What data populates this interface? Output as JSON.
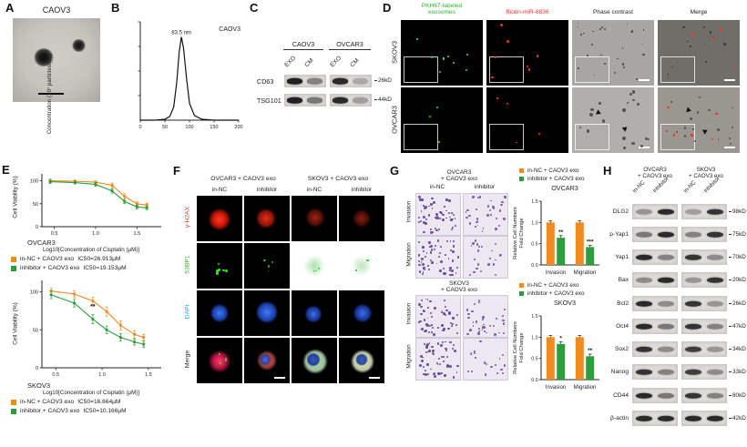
{
  "colors": {
    "orange": "#EF8B1E",
    "green": "#2E9B3F"
  },
  "panelA": {
    "label": "A",
    "title": "CAOV3"
  },
  "panelB": {
    "label": "B",
    "ylabel": "Concentration (10⁷ particles/mL)"
  },
  "panelC": {
    "label": "C",
    "groups": [
      "CAOV3",
      "OVCAR3"
    ],
    "lanes": [
      "EXO",
      "CM"
    ],
    "rows": [
      {
        "protein": "CD63",
        "size": "26kD"
      },
      {
        "protein": "TSG101",
        "size": "44kD"
      }
    ]
  },
  "panelD": {
    "label": "D",
    "col1_line1": "PKH67-labeled",
    "col1_line2": "exosomes",
    "col1_color": "#2DB62D",
    "col2": "Biotin-miR-6836",
    "col2_color": "#E8392B",
    "col3": "Phase contrast",
    "col4": "Merge",
    "rows": [
      "SKOV3",
      "OVCAR3"
    ]
  },
  "panelE": {
    "label": "E",
    "ylabel": "Cell Viability (%)",
    "xlabel": "Log10[Concentration of Cisplatin (μM)]",
    "chart1": {
      "cell": "OVCAR3",
      "legend": [
        {
          "name": "in-NC + CAOV3 exo",
          "ic50": "IC50=26.913μM"
        },
        {
          "name": "inhibitor + CAOV3 exo",
          "ic50": "IC50=19.153μM"
        }
      ]
    },
    "chart2": {
      "cell": "SKOV3",
      "legend": [
        {
          "name": "in-NC + CAOV3 exo",
          "ic50": "IC50=16.664μM"
        },
        {
          "name": "inhibitor + CAOV3 exo",
          "ic50": "IC50=10.166μM"
        }
      ]
    }
  },
  "panelF": {
    "label": "F",
    "groups": [
      "OVCAR3 + CAOV3 exo",
      "SKOV3 + CAOV3 exo"
    ],
    "lanes": [
      "in-NC",
      "inhibitor",
      "in-NC",
      "inhibitor"
    ],
    "rows": [
      {
        "label": "γ-H2AX",
        "color": "#E8392B"
      },
      {
        "label": "53BP1",
        "color": "#2DB62D"
      },
      {
        "label": "DAPI",
        "color": "#00B7D6"
      },
      {
        "label": "Merge",
        "color": "#222222"
      }
    ]
  },
  "panelG": {
    "label": "G",
    "group1": {
      "line1": "OVCAR3",
      "line2": "+ CAOV3 exo"
    },
    "group2": {
      "line1": "SKOV3",
      "line2": "+ CAOV3 exo"
    },
    "lanes": [
      "in-NC",
      "inhibitor"
    ],
    "row_labels": [
      "Invasion",
      "Migration"
    ],
    "legend": [
      {
        "name": "in-NC + CAOV3 exo"
      },
      {
        "name": "inhibitor + CAOV3 exo"
      }
    ],
    "titles": [
      "OVCAR3",
      "SKOV3"
    ],
    "ylabel_line1": "Relative Cell Numbers",
    "ylabel_line2": "Fold Change"
  },
  "panelH": {
    "label": "H",
    "group1": {
      "line1": "OVCAR3",
      "line2": "+ CAOV3 exo"
    },
    "group2": {
      "line1": "SKOV3",
      "line2": "+ CAOV3 exo"
    },
    "lanes": [
      "in-NC",
      "inhibitor"
    ],
    "rows": [
      {
        "protein": "DLG2",
        "size": "98kD"
      },
      {
        "protein": "p-Yap1",
        "size": "75kD"
      },
      {
        "protein": "Yap1",
        "size": "70kD"
      },
      {
        "protein": "Bax",
        "size": "20kD"
      },
      {
        "protein": "Bcl2",
        "size": "26kD"
      },
      {
        "protein": "Oct4",
        "size": "47kD"
      },
      {
        "protein": "Sox2",
        "size": "34kD"
      },
      {
        "protein": "Nanog",
        "size": "33kD"
      },
      {
        "protein": "CD44",
        "size": "80kD"
      },
      {
        "protein": "β-actin",
        "size": "42kD"
      }
    ]
  },
  "chart_data": [
    {
      "id": "nta",
      "type": "line",
      "title": "CAOV3",
      "peak_label": "83.5 nm",
      "peak_x": 83.5,
      "ylabel": "Concentration (10⁷ particles/mL)",
      "xlim": [
        0,
        200
      ],
      "xticks": [
        0,
        50,
        100,
        150,
        200
      ],
      "x": [
        0,
        30,
        50,
        60,
        68,
        74,
        79,
        83.5,
        88,
        94,
        100,
        110,
        125,
        150,
        200
      ],
      "y": [
        0,
        0,
        0.05,
        0.2,
        0.7,
        2.0,
        3.6,
        4.4,
        3.8,
        2.2,
        0.9,
        0.25,
        0.05,
        0,
        0
      ]
    },
    {
      "id": "dose_ovcar3",
      "type": "line",
      "title": "OVCAR3",
      "xlabel": "Log10[Concentration of Cisplatin (μM)]",
      "ylabel": "Cell Viability (%)",
      "xlim": [
        0.35,
        1.75
      ],
      "ylim": [
        0,
        115
      ],
      "xticks": [
        0.5,
        1.0,
        1.5
      ],
      "yticks": [
        0,
        50,
        100
      ],
      "series": [
        {
          "name": "in-NC + CAOV3 exo",
          "ic50": "IC50=26.913μM",
          "color": "#EF8B1E",
          "x": [
            0.45,
            0.75,
            1.0,
            1.2,
            1.35,
            1.5,
            1.62
          ],
          "y": [
            100,
            99,
            97,
            90,
            66,
            50,
            47
          ],
          "err": [
            4,
            3,
            3,
            5,
            6,
            4,
            4
          ]
        },
        {
          "name": "inhibitor + CAOV3 exo",
          "ic50": "IC50=19.153μM",
          "color": "#2E9B3F",
          "x": [
            0.45,
            0.75,
            1.0,
            1.2,
            1.35,
            1.5,
            1.62
          ],
          "y": [
            98,
            96,
            92,
            78,
            55,
            43,
            41
          ],
          "err": [
            4,
            3,
            4,
            5,
            5,
            4,
            4
          ]
        }
      ]
    },
    {
      "id": "dose_skov3",
      "type": "line",
      "title": "SKOV3",
      "xlabel": "Log10[Concentration of Cisplatin (μM)]",
      "ylabel": "Cell Viability (%)",
      "xlim": [
        0.35,
        1.6
      ],
      "ylim": [
        0,
        115
      ],
      "xticks": [
        0.5,
        1.0,
        1.5
      ],
      "yticks": [
        0,
        50,
        100
      ],
      "annotation": {
        "text": "**",
        "x": 0.9,
        "y": 78
      },
      "series": [
        {
          "name": "in-NC + CAOV3 exo",
          "ic50": "IC50=16.664μM",
          "color": "#EF8B1E",
          "x": [
            0.45,
            0.7,
            0.9,
            1.05,
            1.2,
            1.35,
            1.45
          ],
          "y": [
            101,
            97,
            88,
            74,
            56,
            44,
            40
          ],
          "err": [
            4,
            4,
            5,
            6,
            6,
            5,
            4
          ]
        },
        {
          "name": "inhibitor + CAOV3 exo",
          "ic50": "IC50=10.166μM",
          "color": "#2E9B3F",
          "x": [
            0.45,
            0.7,
            0.9,
            1.05,
            1.2,
            1.35,
            1.45
          ],
          "y": [
            96,
            85,
            64,
            50,
            40,
            34,
            31
          ],
          "err": [
            5,
            5,
            6,
            5,
            5,
            4,
            4
          ]
        }
      ]
    },
    {
      "id": "bars_ovcar3",
      "type": "bar",
      "title": "OVCAR3",
      "ylabel": "Relative Cell Numbers Fold Change",
      "categories": [
        "Invasion",
        "Migration"
      ],
      "ylim": [
        0,
        1.5
      ],
      "yticks": [
        0,
        0.5,
        1.0,
        1.5
      ],
      "series": [
        {
          "name": "in-NC + CAOV3 exo",
          "color": "#EF8B1E",
          "values": [
            1.0,
            1.0
          ],
          "err": [
            0.04,
            0.04
          ]
        },
        {
          "name": "inhibitor + CAOV3 exo",
          "color": "#2E9B3F",
          "values": [
            0.64,
            0.42
          ],
          "err": [
            0.05,
            0.04
          ]
        }
      ],
      "significance": [
        "**",
        "***"
      ]
    },
    {
      "id": "bars_skov3",
      "type": "bar",
      "title": "SKOV3",
      "ylabel": "Relative Cell Numbers Fold Change",
      "categories": [
        "Invasion",
        "Migration"
      ],
      "ylim": [
        0,
        1.5
      ],
      "yticks": [
        0,
        0.5,
        1.0,
        1.5
      ],
      "series": [
        {
          "name": "in-NC + CAOV3 exo",
          "color": "#EF8B1E",
          "values": [
            1.0,
            1.0
          ],
          "err": [
            0.04,
            0.04
          ]
        },
        {
          "name": "inhibitor + CAOV3 exo",
          "color": "#2E9B3F",
          "values": [
            0.84,
            0.55
          ],
          "err": [
            0.05,
            0.05
          ]
        }
      ],
      "significance": [
        "*",
        "**"
      ]
    }
  ]
}
